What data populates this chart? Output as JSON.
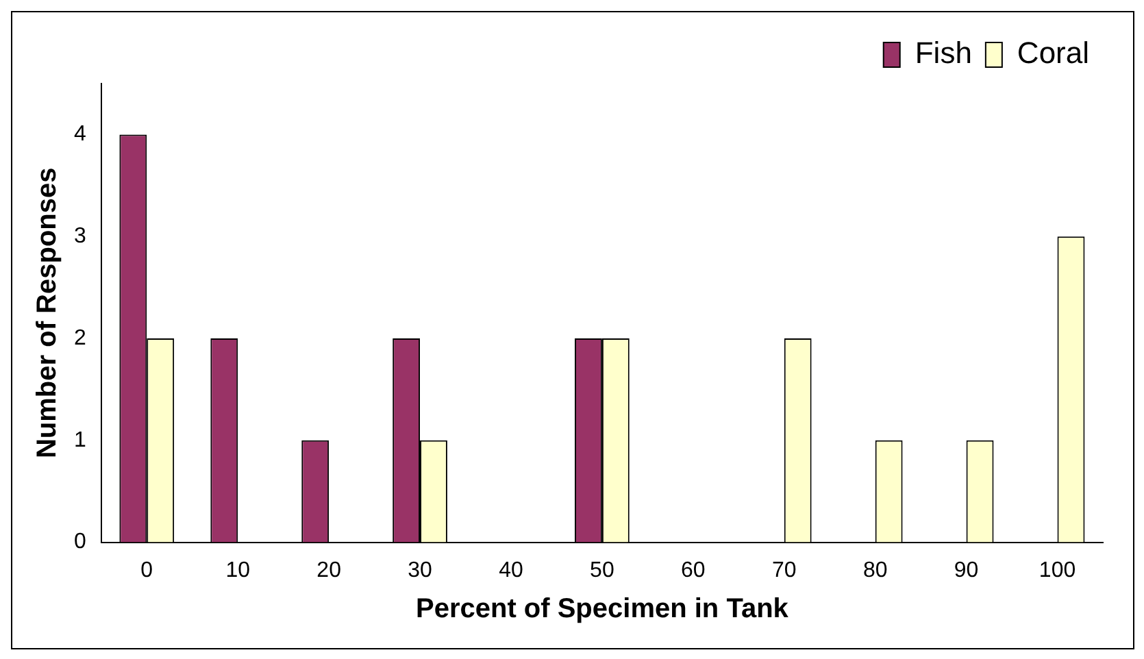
{
  "chart_data": {
    "type": "bar",
    "xlabel": "Percent of Specimen in Tank",
    "ylabel": "Number of Responses",
    "categories": [
      "0",
      "10",
      "20",
      "30",
      "40",
      "50",
      "60",
      "70",
      "80",
      "90",
      "100"
    ],
    "series": [
      {
        "name": "Fish",
        "color": "#993366",
        "values": [
          4,
          2,
          1,
          2,
          0,
          2,
          0,
          0,
          0,
          0,
          0
        ]
      },
      {
        "name": "Coral",
        "color": "#ffffcc",
        "values": [
          2,
          0,
          0,
          1,
          0,
          2,
          0,
          2,
          1,
          1,
          3
        ]
      }
    ],
    "ylim": [
      0,
      4.5
    ],
    "yticks": [
      0,
      1,
      2,
      3,
      4
    ],
    "grid": false,
    "legend": "top right"
  }
}
